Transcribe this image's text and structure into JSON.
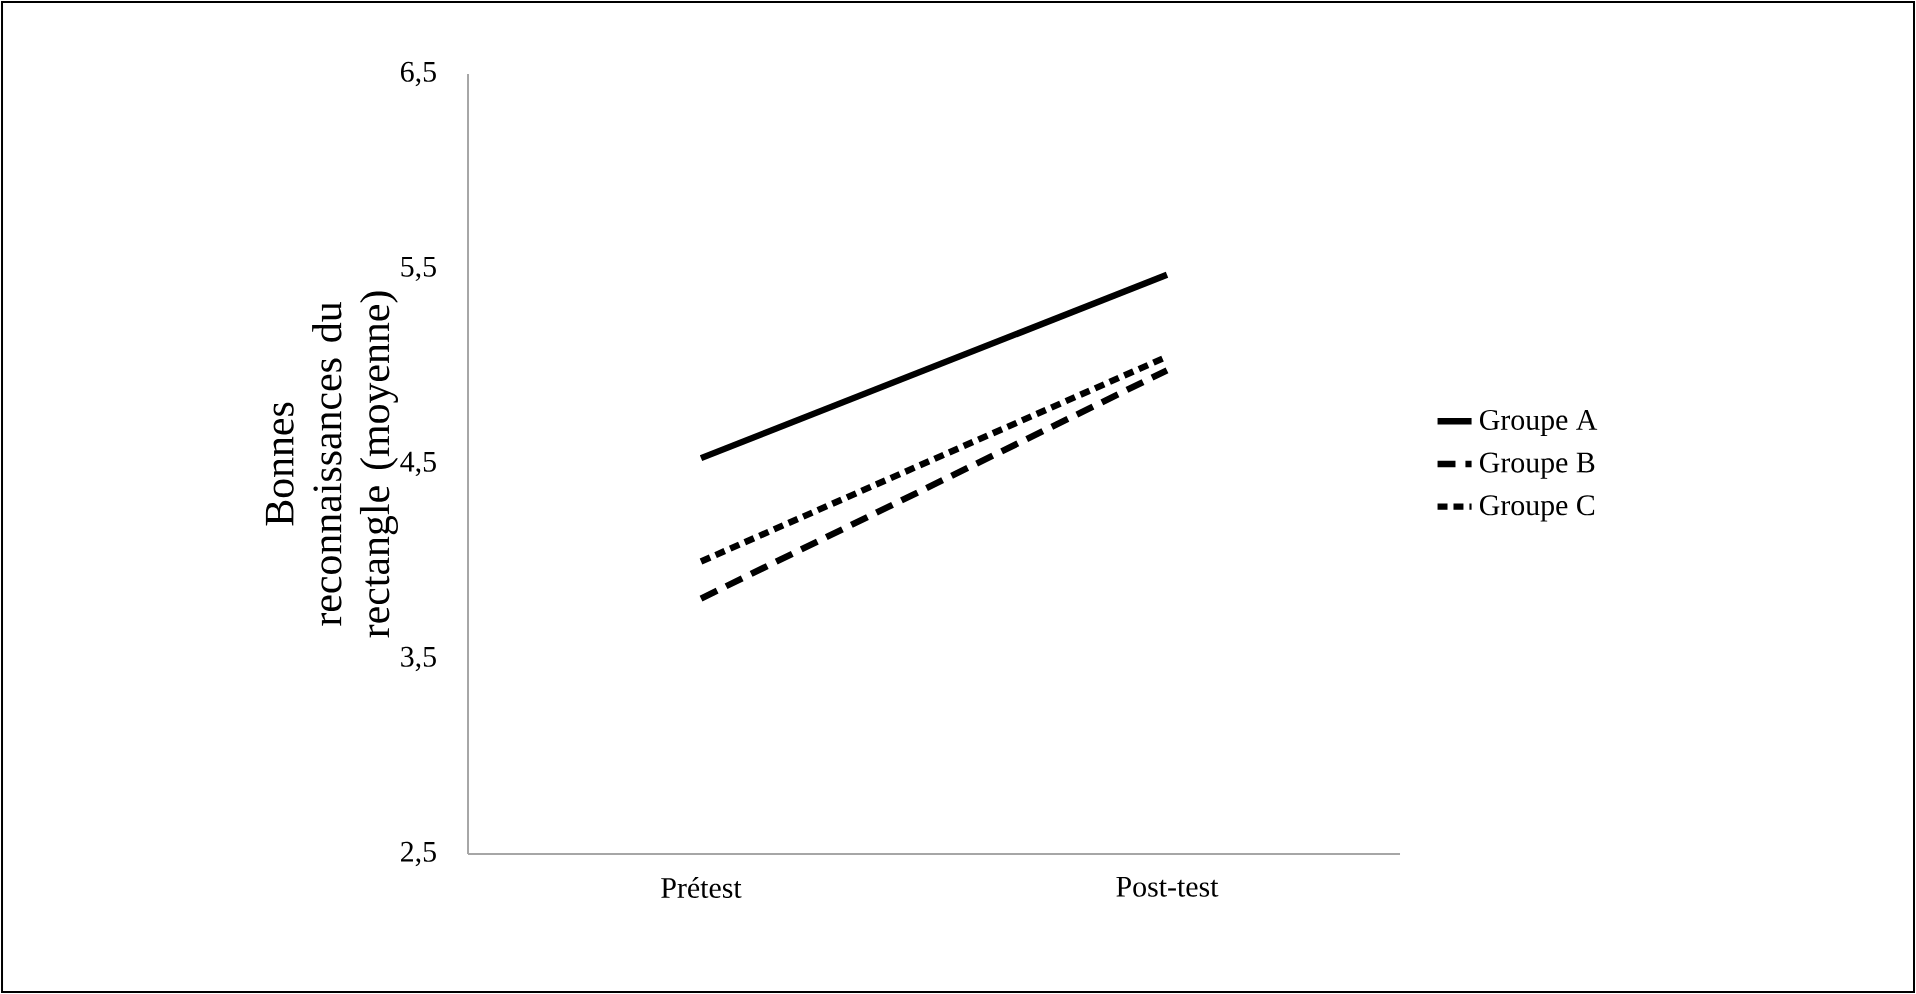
{
  "chart_data": {
    "type": "line",
    "ylabel": "Bonnes reconnaissances du rectangle (moyenne)",
    "categories": [
      "Prétest",
      "Post-test"
    ],
    "series": [
      {
        "name": "Groupe A",
        "color": "#000000",
        "line_style": "solid",
        "values": [
          4.53,
          5.47
        ]
      },
      {
        "name": "Groupe B",
        "color": "#000000",
        "line_style": "dashed",
        "values": [
          3.81,
          4.98
        ]
      },
      {
        "name": "Groupe C",
        "color": "#000000",
        "line_style": "dotted",
        "values": [
          4.0,
          5.05
        ]
      }
    ],
    "ylim": [
      2.5,
      6.5
    ],
    "yticks": [
      {
        "value": 2.5,
        "label": "2,5"
      },
      {
        "value": 3.5,
        "label": "3,5"
      },
      {
        "value": 4.5,
        "label": "4,5"
      },
      {
        "value": 5.5,
        "label": "5,5"
      },
      {
        "value": 6.5,
        "label": "6,5"
      }
    ],
    "legend": "right",
    "marker": "none",
    "grid": false
  }
}
